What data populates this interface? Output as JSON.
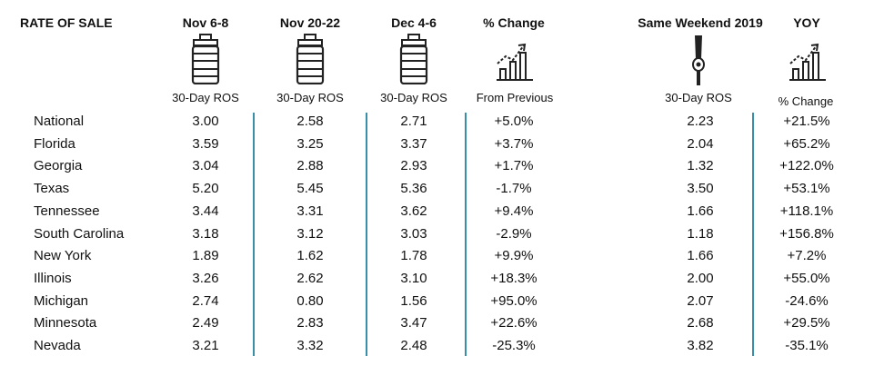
{
  "header": {
    "title": "RATE OF SALE",
    "col1": "Nov 6-8",
    "col2": "Nov 20-22",
    "col3": "Dec 4-6",
    "col4": "% Change",
    "col5": "Same Weekend 2019",
    "col6": "YOY"
  },
  "subheader": {
    "col1": "30-Day ROS",
    "col2": "30-Day ROS",
    "col3": "30-Day ROS",
    "col4": "From Previous",
    "col5": "30-Day ROS",
    "col6": "% Change"
  },
  "icons": {
    "col1": "keg-icon",
    "col2": "keg-icon",
    "col3": "keg-icon",
    "col4": "growth-chart-icon",
    "col5": "beer-tap-icon",
    "col6": "growth-chart-icon"
  },
  "accent_color": "#3a8fa8",
  "rows": [
    {
      "label": "National",
      "v1": "3.00",
      "v2": "2.58",
      "v3": "2.71",
      "pct": "+5.0%",
      "v2019": "2.23",
      "yoy": "+21.5%"
    },
    {
      "label": "Florida",
      "v1": "3.59",
      "v2": "3.25",
      "v3": "3.37",
      "pct": "+3.7%",
      "v2019": "2.04",
      "yoy": "+65.2%"
    },
    {
      "label": "Georgia",
      "v1": "3.04",
      "v2": "2.88",
      "v3": "2.93",
      "pct": "+1.7%",
      "v2019": "1.32",
      "yoy": "+122.0%"
    },
    {
      "label": "Texas",
      "v1": "5.20",
      "v2": "5.45",
      "v3": "5.36",
      "pct": "-1.7%",
      "v2019": "3.50",
      "yoy": "+53.1%"
    },
    {
      "label": "Tennessee",
      "v1": "3.44",
      "v2": "3.31",
      "v3": "3.62",
      "pct": "+9.4%",
      "v2019": "1.66",
      "yoy": "+118.1%"
    },
    {
      "label": "South Carolina",
      "v1": "3.18",
      "v2": "3.12",
      "v3": "3.03",
      "pct": "-2.9%",
      "v2019": "1.18",
      "yoy": "+156.8%"
    },
    {
      "label": "New York",
      "v1": "1.89",
      "v2": "1.62",
      "v3": "1.78",
      "pct": "+9.9%",
      "v2019": "1.66",
      "yoy": "+7.2%"
    },
    {
      "label": "Illinois",
      "v1": "3.26",
      "v2": "2.62",
      "v3": "3.10",
      "pct": "+18.3%",
      "v2019": "2.00",
      "yoy": "+55.0%"
    },
    {
      "label": "Michigan",
      "v1": "2.74",
      "v2": "0.80",
      "v3": "1.56",
      "pct": "+95.0%",
      "v2019": "2.07",
      "yoy": "-24.6%"
    },
    {
      "label": "Minnesota",
      "v1": "2.49",
      "v2": "2.83",
      "v3": "3.47",
      "pct": "+22.6%",
      "v2019": "2.68",
      "yoy": "+29.5%"
    },
    {
      "label": "Nevada",
      "v1": "3.21",
      "v2": "3.32",
      "v3": "2.48",
      "pct": "-25.3%",
      "v2019": "3.82",
      "yoy": "-35.1%"
    }
  ]
}
